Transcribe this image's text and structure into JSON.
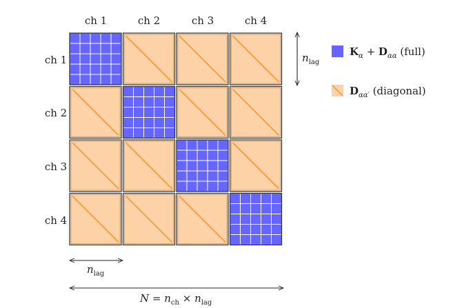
{
  "matrix": {
    "col_labels": [
      "ch 1",
      "ch 2",
      "ch 3",
      "ch 4"
    ],
    "row_labels": [
      "ch 1",
      "ch 2",
      "ch 3",
      "ch 4"
    ],
    "block_types": [
      [
        "full",
        "diagonal",
        "diagonal",
        "diagonal"
      ],
      [
        "diagonal",
        "full",
        "diagonal",
        "diagonal"
      ],
      [
        "diagonal",
        "diagonal",
        "full",
        "diagonal"
      ],
      [
        "diagonal",
        "diagonal",
        "diagonal",
        "full"
      ]
    ],
    "full_block_grid_divisions": 5
  },
  "colors": {
    "full_fill": "#6666ff",
    "full_grid": "#ffffff",
    "diag_fill": "#fdd2a6",
    "diag_line": "#f59b3a",
    "block_border": "#333333"
  },
  "annotations": {
    "block_height_label": {
      "base": "n",
      "sub": "lag"
    },
    "block_width_label": {
      "base": "n",
      "sub": "lag"
    },
    "total_size_label": {
      "lhs": "N",
      "eq": " = ",
      "base1": "n",
      "sub1": "ch",
      "times": " × ",
      "base2": "n",
      "sub2": "lag"
    }
  },
  "legend": {
    "full": {
      "bold1": "K",
      "sub1": "α",
      "plus": " + ",
      "bold2": "D",
      "sub2": "αα",
      "suffix": " (full)"
    },
    "diagonal": {
      "bold": "D",
      "sub": "αα′",
      "suffix": " (diagonal)"
    }
  }
}
